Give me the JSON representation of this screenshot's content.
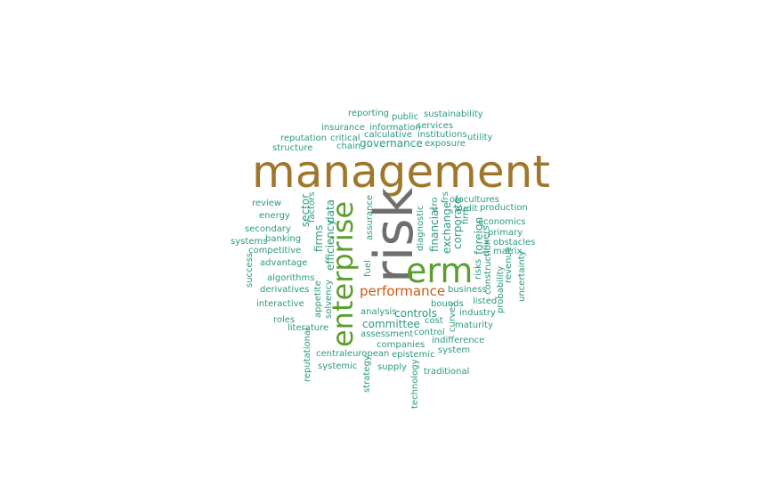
{
  "colors": {
    "primary": "#a0762a",
    "gray": "#6e6e6e",
    "green": "#5a9e2c",
    "orange": "#cc5a10",
    "teal": "#2a9a7e"
  },
  "words": [
    {
      "text": "management",
      "color": "primary"
    },
    {
      "text": "risk",
      "color": "gray"
    },
    {
      "text": "erm",
      "color": "green"
    },
    {
      "text": "enterprise",
      "color": "green"
    },
    {
      "text": "performance",
      "color": "orange"
    },
    {
      "text": "reporting",
      "color": "teal"
    },
    {
      "text": "public",
      "color": "teal"
    },
    {
      "text": "sustainability",
      "color": "teal"
    },
    {
      "text": "insurance",
      "color": "teal"
    },
    {
      "text": "information",
      "color": "teal"
    },
    {
      "text": "services",
      "color": "teal"
    },
    {
      "text": "calculative",
      "color": "teal"
    },
    {
      "text": "institutions",
      "color": "teal"
    },
    {
      "text": "reputation",
      "color": "teal"
    },
    {
      "text": "critical",
      "color": "teal"
    },
    {
      "text": "governance",
      "color": "teal"
    },
    {
      "text": "utility",
      "color": "teal"
    },
    {
      "text": "structure",
      "color": "teal"
    },
    {
      "text": "chain",
      "color": "teal"
    },
    {
      "text": "exposure",
      "color": "teal"
    },
    {
      "text": "review",
      "color": "teal"
    },
    {
      "text": "energy",
      "color": "teal"
    },
    {
      "text": "secondary",
      "color": "teal"
    },
    {
      "text": "systems",
      "color": "teal"
    },
    {
      "text": "banking",
      "color": "teal"
    },
    {
      "text": "competitive",
      "color": "teal"
    },
    {
      "text": "advantage",
      "color": "teal"
    },
    {
      "text": "success",
      "color": "teal"
    },
    {
      "text": "algorithms",
      "color": "teal"
    },
    {
      "text": "derivatives",
      "color": "teal"
    },
    {
      "text": "interactive",
      "color": "teal"
    },
    {
      "text": "roles",
      "color": "teal"
    },
    {
      "text": "literature",
      "color": "teal"
    },
    {
      "text": "reputational",
      "color": "teal"
    },
    {
      "text": "systemic",
      "color": "teal"
    },
    {
      "text": "centraleuropean",
      "color": "teal"
    },
    {
      "text": "strategy",
      "color": "teal"
    },
    {
      "text": "supply",
      "color": "teal"
    },
    {
      "text": "technology",
      "color": "teal"
    },
    {
      "text": "epistemic",
      "color": "teal"
    },
    {
      "text": "traditional",
      "color": "teal"
    },
    {
      "text": "companies",
      "color": "teal"
    },
    {
      "text": "assessment",
      "color": "teal"
    },
    {
      "text": "control",
      "color": "teal"
    },
    {
      "text": "committee",
      "color": "teal"
    },
    {
      "text": "analysis",
      "color": "teal"
    },
    {
      "text": "controls",
      "color": "teal"
    },
    {
      "text": "cost",
      "color": "teal"
    },
    {
      "text": "bounds",
      "color": "teal"
    },
    {
      "text": "business",
      "color": "teal"
    },
    {
      "text": "listed",
      "color": "teal"
    },
    {
      "text": "industry",
      "color": "teal"
    },
    {
      "text": "maturity",
      "color": "teal"
    },
    {
      "text": "indifference",
      "color": "teal"
    },
    {
      "text": "system",
      "color": "teal"
    },
    {
      "text": "curves",
      "color": "teal"
    },
    {
      "text": "probability",
      "color": "teal"
    },
    {
      "text": "uncertainty",
      "color": "teal"
    },
    {
      "text": "revenue",
      "color": "teal"
    },
    {
      "text": "construction",
      "color": "teal"
    },
    {
      "text": "risks",
      "color": "teal"
    },
    {
      "text": "drivers",
      "color": "teal"
    },
    {
      "text": "matrix",
      "color": "teal"
    },
    {
      "text": "obstacles",
      "color": "teal"
    },
    {
      "text": "primary",
      "color": "teal"
    },
    {
      "text": "economics",
      "color": "teal"
    },
    {
      "text": "production",
      "color": "teal"
    },
    {
      "text": "ofocultures",
      "color": "teal"
    },
    {
      "text": "audit",
      "color": "teal"
    },
    {
      "text": "firm",
      "color": "teal"
    },
    {
      "text": "cro",
      "color": "teal"
    },
    {
      "text": "frs",
      "color": "teal"
    },
    {
      "text": "foreign",
      "color": "teal"
    },
    {
      "text": "corporate",
      "color": "teal"
    },
    {
      "text": "exchange",
      "color": "teal"
    },
    {
      "text": "financial",
      "color": "teal"
    },
    {
      "text": "diagnostic",
      "color": "teal"
    },
    {
      "text": "data",
      "color": "teal"
    },
    {
      "text": "efficiency",
      "color": "teal"
    },
    {
      "text": "firms",
      "color": "teal"
    },
    {
      "text": "sector",
      "color": "teal"
    },
    {
      "text": "factors",
      "color": "teal"
    },
    {
      "text": "assurance",
      "color": "teal"
    },
    {
      "text": "fuel",
      "color": "teal"
    },
    {
      "text": "solvency",
      "color": "teal"
    },
    {
      "text": "appetite",
      "color": "teal"
    }
  ]
}
